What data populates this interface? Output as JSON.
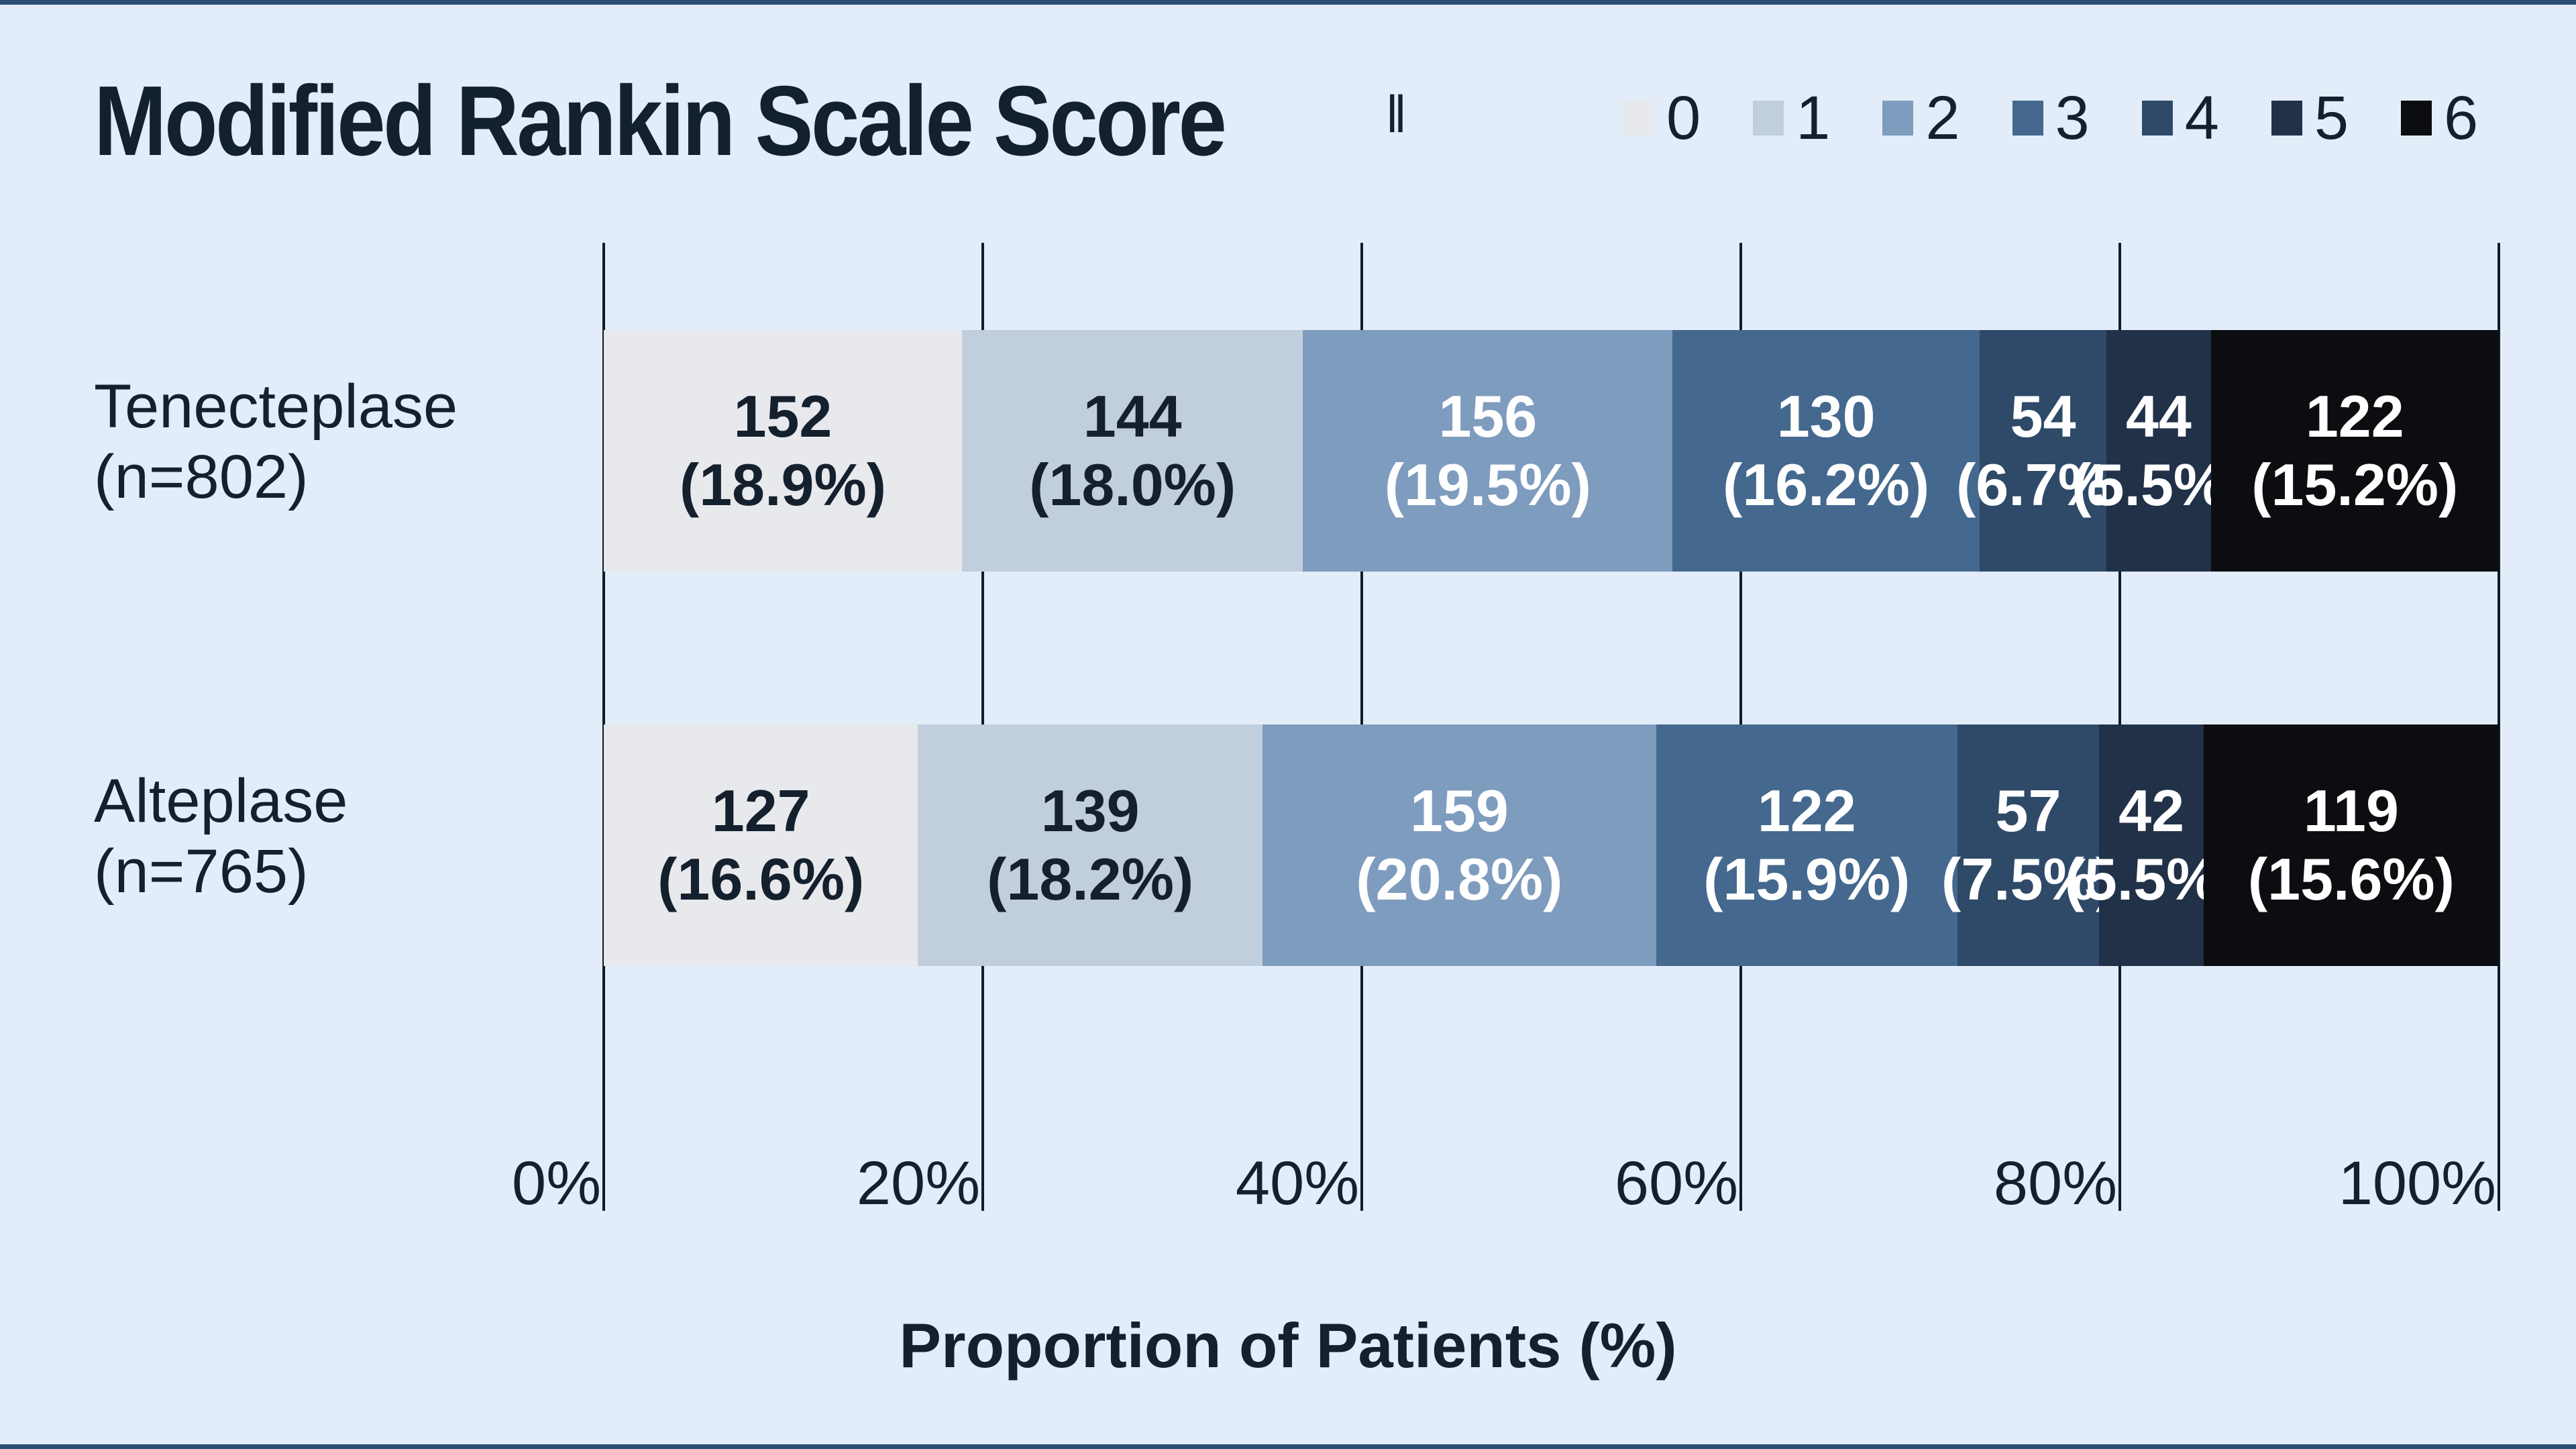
{
  "page": {
    "background": "#e2edf9",
    "frame_color": "#2b4d74",
    "gridline_color": "#0e1c2b",
    "dark_text_color": "#13202e"
  },
  "header": {
    "title": "Modified Rankin Scale Score",
    "title_superscript": "‖"
  },
  "legend": {
    "items": [
      {
        "label": "0",
        "color": "#e8e9ed"
      },
      {
        "label": "1",
        "color": "#c1cedd"
      },
      {
        "label": "2",
        "color": "#7e9cbe"
      },
      {
        "label": "3",
        "color": "#44688e"
      },
      {
        "label": "4",
        "color": "#2e4a68"
      },
      {
        "label": "5",
        "color": "#203148"
      },
      {
        "label": "6",
        "color": "#0c0d10"
      }
    ]
  },
  "chart_data": {
    "type": "bar",
    "stacked": true,
    "orientation": "horizontal",
    "title": "Modified Rankin Scale Score",
    "xlabel": "Proportion of Patients (%)",
    "xlim": [
      0,
      100
    ],
    "grid": true,
    "legend_position": "top-right",
    "legend_labels": [
      "0",
      "1",
      "2",
      "3",
      "4",
      "5",
      "6"
    ],
    "series_colors": [
      "#e8e9ed",
      "#c1cedd",
      "#7e9cbe",
      "#44688e",
      "#2e4a68",
      "#203148",
      "#0c0d10"
    ],
    "label_text_colors": [
      "#15202e",
      "#15202e",
      "#ffffff",
      "#ffffff",
      "#ffffff",
      "#ffffff",
      "#ffffff"
    ],
    "x_ticks": [
      {
        "label": "0%",
        "value": 0
      },
      {
        "label": "20%",
        "value": 20
      },
      {
        "label": "40%",
        "value": 40
      },
      {
        "label": "60%",
        "value": 60
      },
      {
        "label": "80%",
        "value": 80
      },
      {
        "label": "100%",
        "value": 100
      }
    ],
    "rows": [
      {
        "group": "Tenecteplase",
        "n_label": "(n=802)",
        "bar_top": 492,
        "segments": [
          {
            "score": "0",
            "count": 152,
            "pct": 18.9
          },
          {
            "score": "1",
            "count": 144,
            "pct": 18.0
          },
          {
            "score": "2",
            "count": 156,
            "pct": 19.5
          },
          {
            "score": "3",
            "count": 130,
            "pct": 16.2
          },
          {
            "score": "4",
            "count": 54,
            "pct": 6.7
          },
          {
            "score": "5",
            "count": 44,
            "pct": 5.5
          },
          {
            "score": "6",
            "count": 122,
            "pct": 15.2
          }
        ]
      },
      {
        "group": "Alteplase",
        "n_label": "(n=765)",
        "bar_top": 1080,
        "segments": [
          {
            "score": "0",
            "count": 127,
            "pct": 16.6
          },
          {
            "score": "1",
            "count": 139,
            "pct": 18.2
          },
          {
            "score": "2",
            "count": 159,
            "pct": 20.8
          },
          {
            "score": "3",
            "count": 122,
            "pct": 15.9
          },
          {
            "score": "4",
            "count": 57,
            "pct": 7.5
          },
          {
            "score": "5",
            "count": 42,
            "pct": 5.5
          },
          {
            "score": "6",
            "count": 119,
            "pct": 15.6
          }
        ]
      }
    ]
  }
}
